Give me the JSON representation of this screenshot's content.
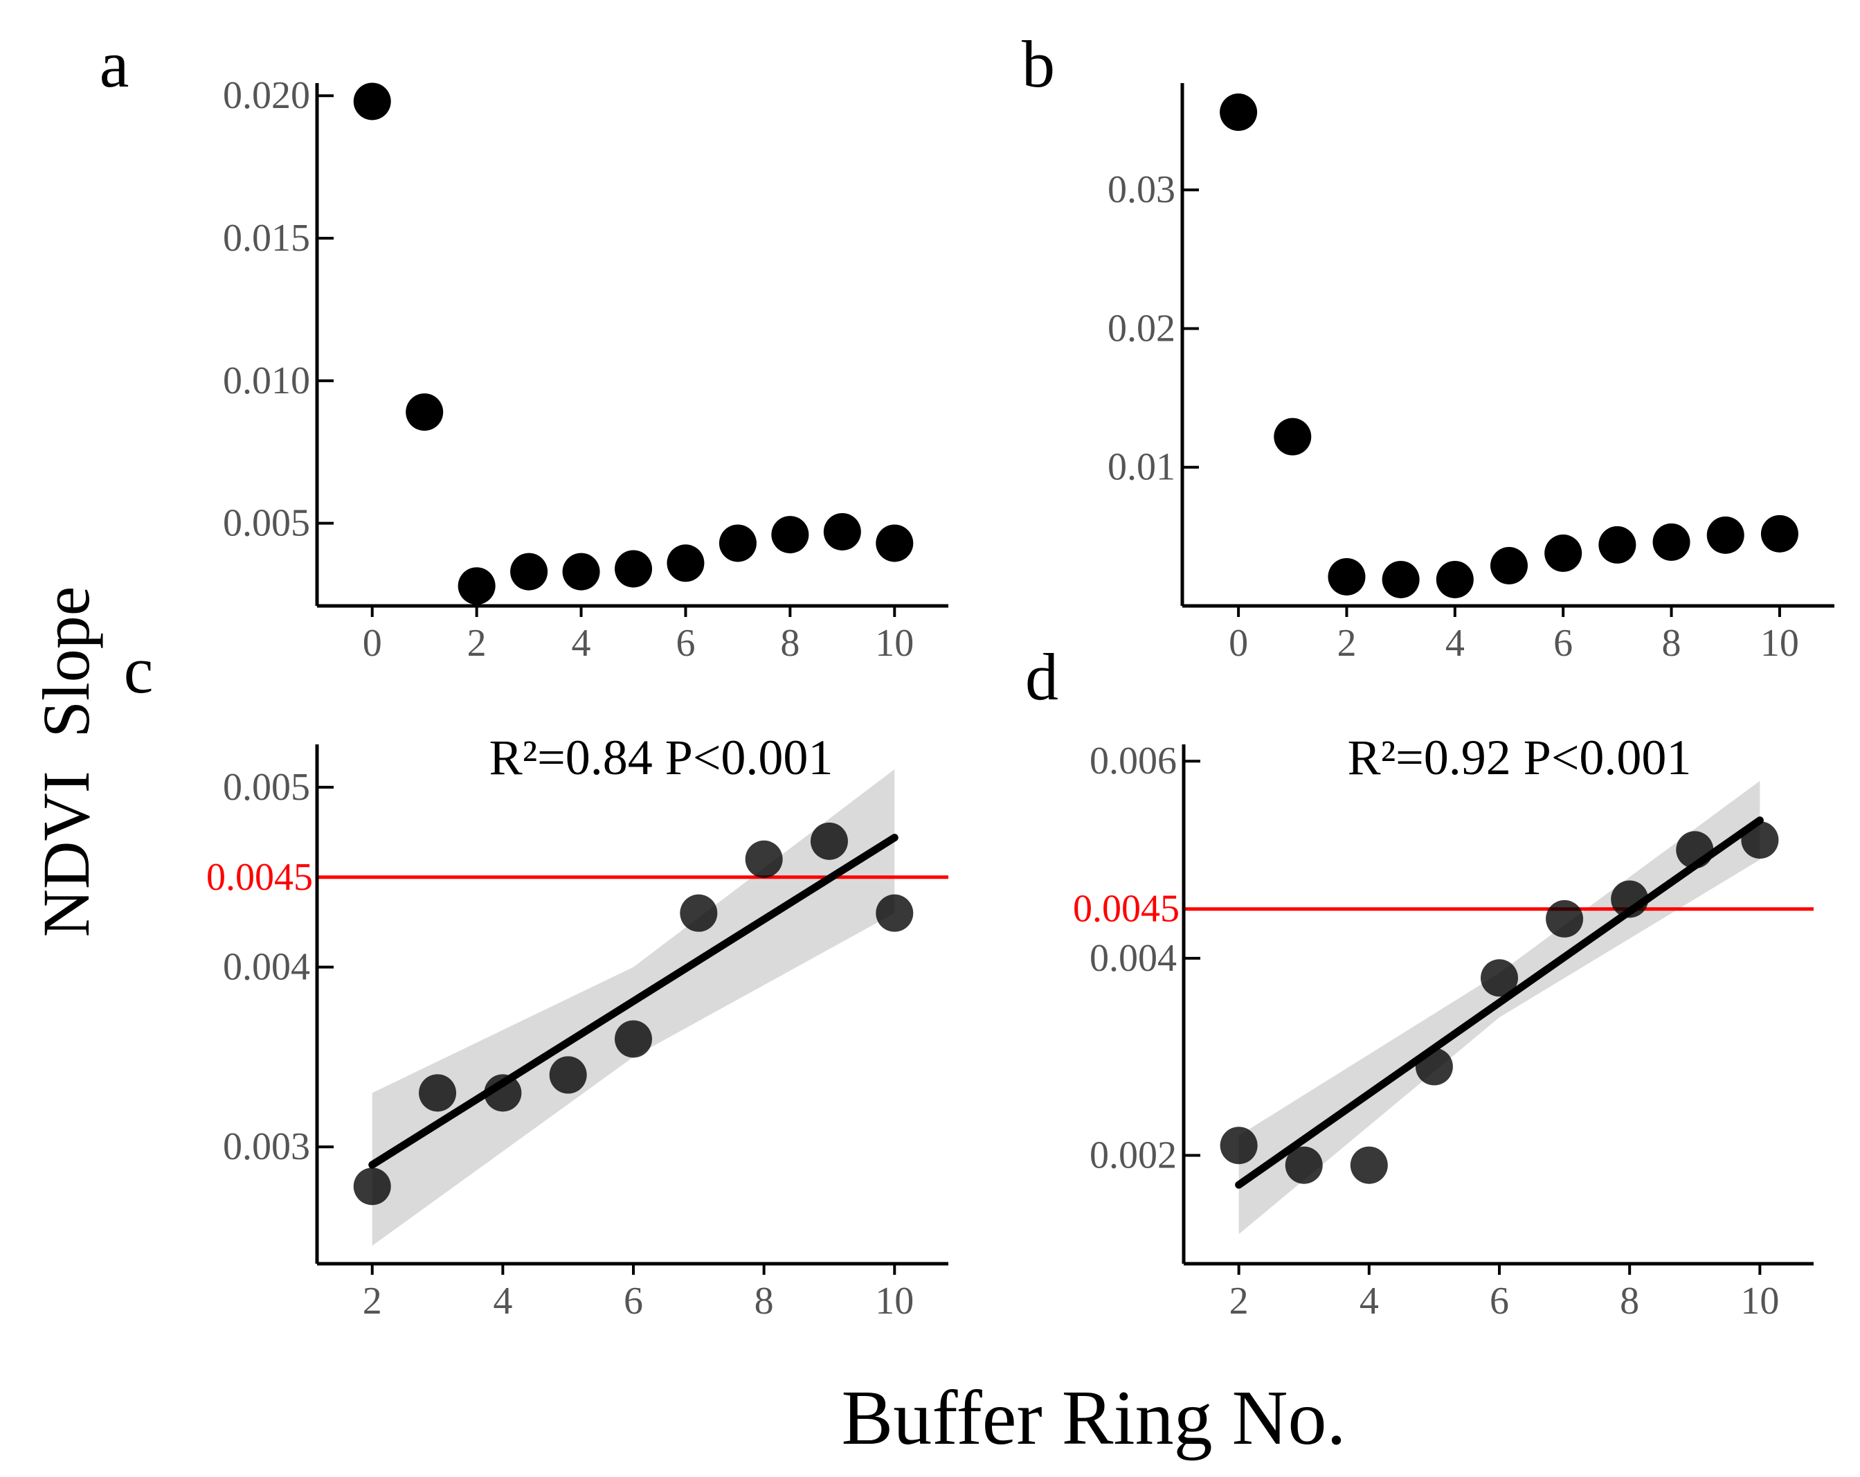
{
  "figure": {
    "ylabel": "NDVI  Slope",
    "xlabel": "Buffer Ring No."
  },
  "colors": {
    "point": "#000000",
    "axis": "#000000",
    "tick_label": "#555555",
    "threshold": "#ff0000",
    "band": "#d3d3d3"
  },
  "chart_data": [
    {
      "id": "a",
      "panel_label": "a",
      "type": "scatter",
      "x": [
        0,
        1,
        2,
        3,
        4,
        5,
        6,
        7,
        8,
        9,
        10
      ],
      "y": [
        0.0198,
        0.0089,
        0.0028,
        0.0033,
        0.0033,
        0.0034,
        0.0036,
        0.0043,
        0.0046,
        0.0047,
        0.0043
      ],
      "xlim": [
        -0.5,
        10.5
      ],
      "ylim": [
        0.0021,
        0.0202
      ],
      "xticks": [
        0,
        2,
        4,
        6,
        8,
        10
      ],
      "xtick_labels": [
        "0",
        "2",
        "4",
        "6",
        "8",
        "10"
      ],
      "yticks": [
        0.005,
        0.01,
        0.015,
        0.02
      ],
      "ytick_labels": [
        "0.005",
        "0.010",
        "0.015",
        "0.020"
      ]
    },
    {
      "id": "b",
      "panel_label": "b",
      "type": "scatter",
      "x": [
        0,
        1,
        2,
        3,
        4,
        5,
        6,
        7,
        8,
        9,
        10
      ],
      "y": [
        0.0356,
        0.0122,
        0.0021,
        0.0019,
        0.0019,
        0.0029,
        0.0038,
        0.0044,
        0.0046,
        0.0051,
        0.0052
      ],
      "xlim": [
        -0.5,
        10.5
      ],
      "ylim": [
        0.0,
        0.0372
      ],
      "xticks": [
        0,
        2,
        4,
        6,
        8,
        10
      ],
      "xtick_labels": [
        "0",
        "2",
        "4",
        "6",
        "8",
        "10"
      ],
      "yticks": [
        0.01,
        0.02,
        0.03
      ],
      "ytick_labels": [
        "0.01",
        "0.02",
        "0.03"
      ]
    },
    {
      "id": "c",
      "panel_label": "c",
      "type": "scatter",
      "annotation": "R²=0.84 P<0.001",
      "x": [
        2,
        3,
        4,
        5,
        6,
        7,
        8,
        9,
        10
      ],
      "y": [
        0.00278,
        0.0033,
        0.0033,
        0.0034,
        0.0036,
        0.0043,
        0.0046,
        0.0047,
        0.0043
      ],
      "xlim": [
        1.6,
        10.4
      ],
      "ylim": [
        0.00235,
        0.0052
      ],
      "xticks": [
        2,
        4,
        6,
        8,
        10
      ],
      "xtick_labels": [
        "2",
        "4",
        "6",
        "8",
        "10"
      ],
      "yticks": [
        0.003,
        0.004,
        0.005
      ],
      "ytick_labels": [
        "0.003",
        "0.004",
        "0.005"
      ],
      "threshold": {
        "value": 0.0045,
        "label": "0.0045"
      },
      "fit": {
        "x": [
          2,
          10
        ],
        "y": [
          0.0029,
          0.00472
        ]
      },
      "ci_upper": [
        {
          "x": 2,
          "y": 0.0033
        },
        {
          "x": 6,
          "y": 0.004
        },
        {
          "x": 10,
          "y": 0.0051
        }
      ],
      "ci_lower": [
        {
          "x": 2,
          "y": 0.00245
        },
        {
          "x": 6,
          "y": 0.0035
        },
        {
          "x": 10,
          "y": 0.0043
        }
      ]
    },
    {
      "id": "d",
      "panel_label": "d",
      "type": "scatter",
      "annotation": "R²=0.92 P<0.001",
      "x": [
        2,
        3,
        4,
        5,
        6,
        7,
        8,
        9,
        10
      ],
      "y": [
        0.0021,
        0.0019,
        0.0019,
        0.0029,
        0.0038,
        0.0044,
        0.0046,
        0.0051,
        0.0052
      ],
      "xlim": [
        1.6,
        10.4
      ],
      "ylim": [
        0.0009,
        0.0061
      ],
      "xticks": [
        2,
        4,
        6,
        8,
        10
      ],
      "xtick_labels": [
        "2",
        "4",
        "6",
        "8",
        "10"
      ],
      "yticks": [
        0.002,
        0.004,
        0.006
      ],
      "ytick_labels": [
        "0.002",
        "0.004",
        "0.006"
      ],
      "threshold": {
        "value": 0.0045,
        "label": "0.0045"
      },
      "fit": {
        "x": [
          2,
          10
        ],
        "y": [
          0.0017,
          0.0054
        ]
      },
      "ci_upper": [
        {
          "x": 2,
          "y": 0.0022
        },
        {
          "x": 6,
          "y": 0.00385
        },
        {
          "x": 10,
          "y": 0.0058
        }
      ],
      "ci_lower": [
        {
          "x": 2,
          "y": 0.0012
        },
        {
          "x": 6,
          "y": 0.0034
        },
        {
          "x": 10,
          "y": 0.005
        }
      ]
    }
  ]
}
